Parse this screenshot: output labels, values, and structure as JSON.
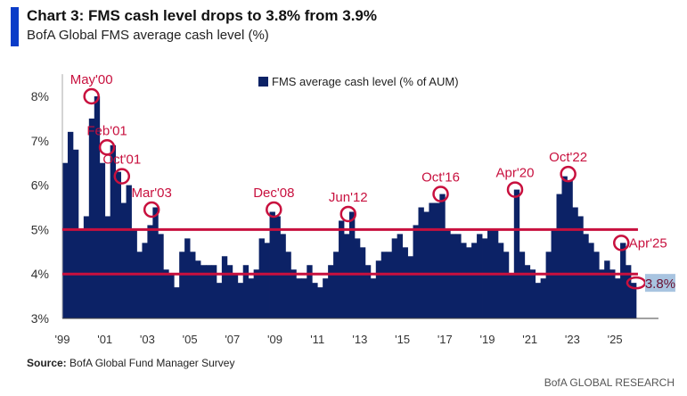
{
  "header": {
    "title": "Chart 3: FMS cash level drops to 3.8% from 3.9%",
    "subtitle": "BofA Global FMS average cash level (%)"
  },
  "source": {
    "label": "Source:",
    "text": "BofA Global Fund Manager Survey"
  },
  "footer": "BofA GLOBAL RESEARCH",
  "colors": {
    "bars": "#0c2266",
    "lines": "#c8103e",
    "annotation": "#c8103e",
    "last_value_box": "#a8c4e0",
    "accent": "#0a3cc8"
  },
  "chart_data": {
    "type": "bar",
    "title": "Chart 3: FMS cash level drops to 3.8% from 3.9%",
    "subtitle": "BofA Global FMS average cash level (%)",
    "legend": {
      "label": "FMS average cash level (% of AUM)",
      "position": "top-center"
    },
    "frequency": "quarterly (approximated from monthly bars)",
    "start": "1999 Q1",
    "series": [
      {
        "name": "FMS average cash level (% of AUM)",
        "values": [
          6.5,
          7.2,
          6.8,
          5.0,
          5.3,
          7.5,
          8.0,
          6.5,
          5.3,
          6.9,
          6.3,
          5.6,
          6.0,
          5.0,
          4.5,
          4.7,
          5.1,
          5.5,
          4.9,
          4.1,
          4.0,
          3.7,
          4.5,
          4.8,
          4.5,
          4.3,
          4.2,
          4.2,
          4.2,
          3.8,
          4.4,
          4.2,
          4.0,
          3.8,
          4.2,
          3.9,
          4.1,
          4.8,
          4.7,
          5.4,
          5.3,
          4.9,
          4.5,
          4.1,
          3.9,
          3.9,
          4.2,
          3.8,
          3.7,
          3.9,
          4.2,
          4.5,
          5.2,
          4.9,
          5.4,
          4.8,
          4.6,
          4.2,
          3.9,
          4.3,
          4.5,
          4.5,
          4.8,
          4.9,
          4.6,
          4.4,
          5.1,
          5.5,
          5.4,
          5.6,
          5.6,
          5.8,
          5.0,
          4.9,
          4.9,
          4.7,
          4.6,
          4.7,
          4.9,
          4.8,
          5.0,
          5.0,
          4.7,
          4.5,
          4.0,
          5.9,
          4.5,
          4.2,
          4.1,
          3.8,
          3.9,
          4.5,
          5.0,
          5.8,
          6.2,
          6.1,
          5.5,
          5.3,
          4.9,
          4.7,
          4.5,
          4.1,
          4.3,
          4.1,
          3.9,
          4.7,
          4.2,
          3.8
        ]
      }
    ],
    "ylim": [
      3,
      8.5
    ],
    "yticks": [
      "3%",
      "4%",
      "5%",
      "6%",
      "7%",
      "8%"
    ],
    "xticks": [
      "'99",
      "'01",
      "'03",
      "'05",
      "'07",
      "'09",
      "'11",
      "'13",
      "'15",
      "'17",
      "'19",
      "'21",
      "'23",
      "'25"
    ],
    "reference_lines": [
      5.0,
      4.0
    ],
    "annotations": [
      {
        "label": "May'00",
        "date": 2000.37,
        "value": 8.0
      },
      {
        "label": "Feb'01",
        "date": 2001.1,
        "value": 6.85
      },
      {
        "label": "Oct'01",
        "date": 2001.8,
        "value": 6.2
      },
      {
        "label": "Mar'03",
        "date": 2003.2,
        "value": 5.45
      },
      {
        "label": "Dec'08",
        "date": 2008.95,
        "value": 5.45
      },
      {
        "label": "Jun'12",
        "date": 2012.45,
        "value": 5.35
      },
      {
        "label": "Oct'16",
        "date": 2016.8,
        "value": 5.8
      },
      {
        "label": "Apr'20",
        "date": 2020.3,
        "value": 5.9
      },
      {
        "label": "Oct'22",
        "date": 2022.8,
        "value": 6.25
      },
      {
        "label": "Apr'25",
        "date": 2025.3,
        "value": 4.7
      }
    ],
    "last_value": {
      "label": "3.8%",
      "value": 3.8
    },
    "grid": false
  }
}
